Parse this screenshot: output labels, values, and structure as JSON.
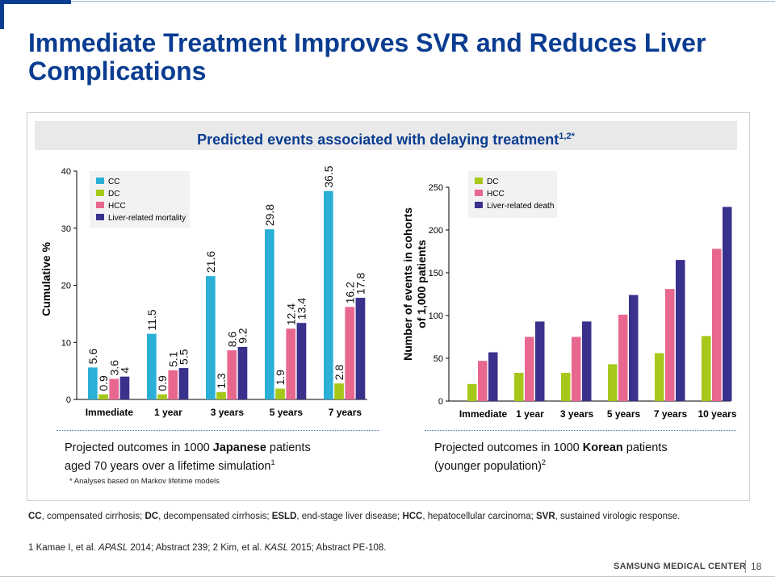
{
  "title": "Immediate Treatment Improves SVR and Reduces Liver Complications",
  "banner": {
    "text": "Predicted events associated with delaying treatment",
    "sup": "1,2*"
  },
  "colors": {
    "brand": "#0a3d91",
    "cc": "#2ab0d6",
    "dc": "#a6c81a",
    "hcc": "#e8678f",
    "mortality": "#3a318c"
  },
  "left_caption": {
    "pre": "Projected outcomes in 1000 ",
    "bold": "Japanese",
    "post": " patients",
    "line2": "aged 70 years over a lifetime simulation",
    "sup": "1"
  },
  "right_caption": {
    "pre": "Projected outcomes in 1000 ",
    "bold": "Korean",
    "post": " patients",
    "line2": "(younger population)",
    "sup": "2"
  },
  "note": "* Analyses based on Markov lifetime models",
  "footnote1": [
    {
      "b": "CC"
    },
    {
      "t": ", compensated cirrhosis; "
    },
    {
      "b": "DC"
    },
    {
      "t": ", decompensated cirrhosis; "
    },
    {
      "b": "ESLD"
    },
    {
      "t": ", end-stage liver disease; "
    },
    {
      "b": "HCC"
    },
    {
      "t": ", hepatocellular carcinoma; "
    },
    {
      "b": "SVR"
    },
    {
      "t": ", sustained virologic response."
    }
  ],
  "footnote2": [
    {
      "t": "1 Kamae I, et al. "
    },
    {
      "i": "APASL"
    },
    {
      "t": " 2014; Abstract 239; 2 Kim, et al. "
    },
    {
      "i": "KASL"
    },
    {
      "t": " 2015; Abstract PE-108."
    }
  ],
  "footer": {
    "brand": "SAMSUNG MEDICAL CENTER",
    "page": "18"
  },
  "chart_data": [
    {
      "type": "bar",
      "ylabel": "Cumulative %",
      "ylim": [
        0,
        40
      ],
      "yticks": [
        0,
        10,
        20,
        30,
        40
      ],
      "categories": [
        "Immediate",
        "1 year",
        "3 years",
        "5 years",
        "7 years"
      ],
      "show_value_labels": true,
      "legend_position": "top-left",
      "series": [
        {
          "name": "CC",
          "color": "#2ab0d6",
          "values": [
            5.6,
            11.5,
            21.6,
            29.8,
            36.5
          ]
        },
        {
          "name": "DC",
          "color": "#a6c81a",
          "values": [
            0.9,
            0.9,
            1.3,
            1.9,
            2.8
          ]
        },
        {
          "name": "HCC",
          "color": "#e8678f",
          "values": [
            3.6,
            5.1,
            8.6,
            12.4,
            16.2
          ]
        },
        {
          "name": "Liver-related mortality",
          "color": "#3a318c",
          "values": [
            4,
            5.5,
            9.2,
            13.4,
            17.8
          ]
        }
      ]
    },
    {
      "type": "bar",
      "ylabel": "Number of events in cohorts of 1,000 patients",
      "ylabel_lines": [
        "Number of events in cohorts",
        "of 1,000 patients"
      ],
      "ylim": [
        0,
        250
      ],
      "yticks": [
        0,
        50,
        100,
        150,
        200,
        250
      ],
      "categories": [
        "Immediate",
        "1 year",
        "3 years",
        "5 years",
        "7 years",
        "10 years"
      ],
      "show_value_labels": false,
      "legend_position": "top-left",
      "series": [
        {
          "name": "DC",
          "color": "#a6c81a",
          "values": [
            20,
            33,
            33,
            43,
            56,
            76
          ]
        },
        {
          "name": "HCC",
          "color": "#e8678f",
          "values": [
            47,
            75,
            75,
            101,
            131,
            178
          ]
        },
        {
          "name": "Liver-related death",
          "color": "#3a318c",
          "values": [
            57,
            93,
            93,
            124,
            165,
            227
          ]
        }
      ]
    }
  ]
}
